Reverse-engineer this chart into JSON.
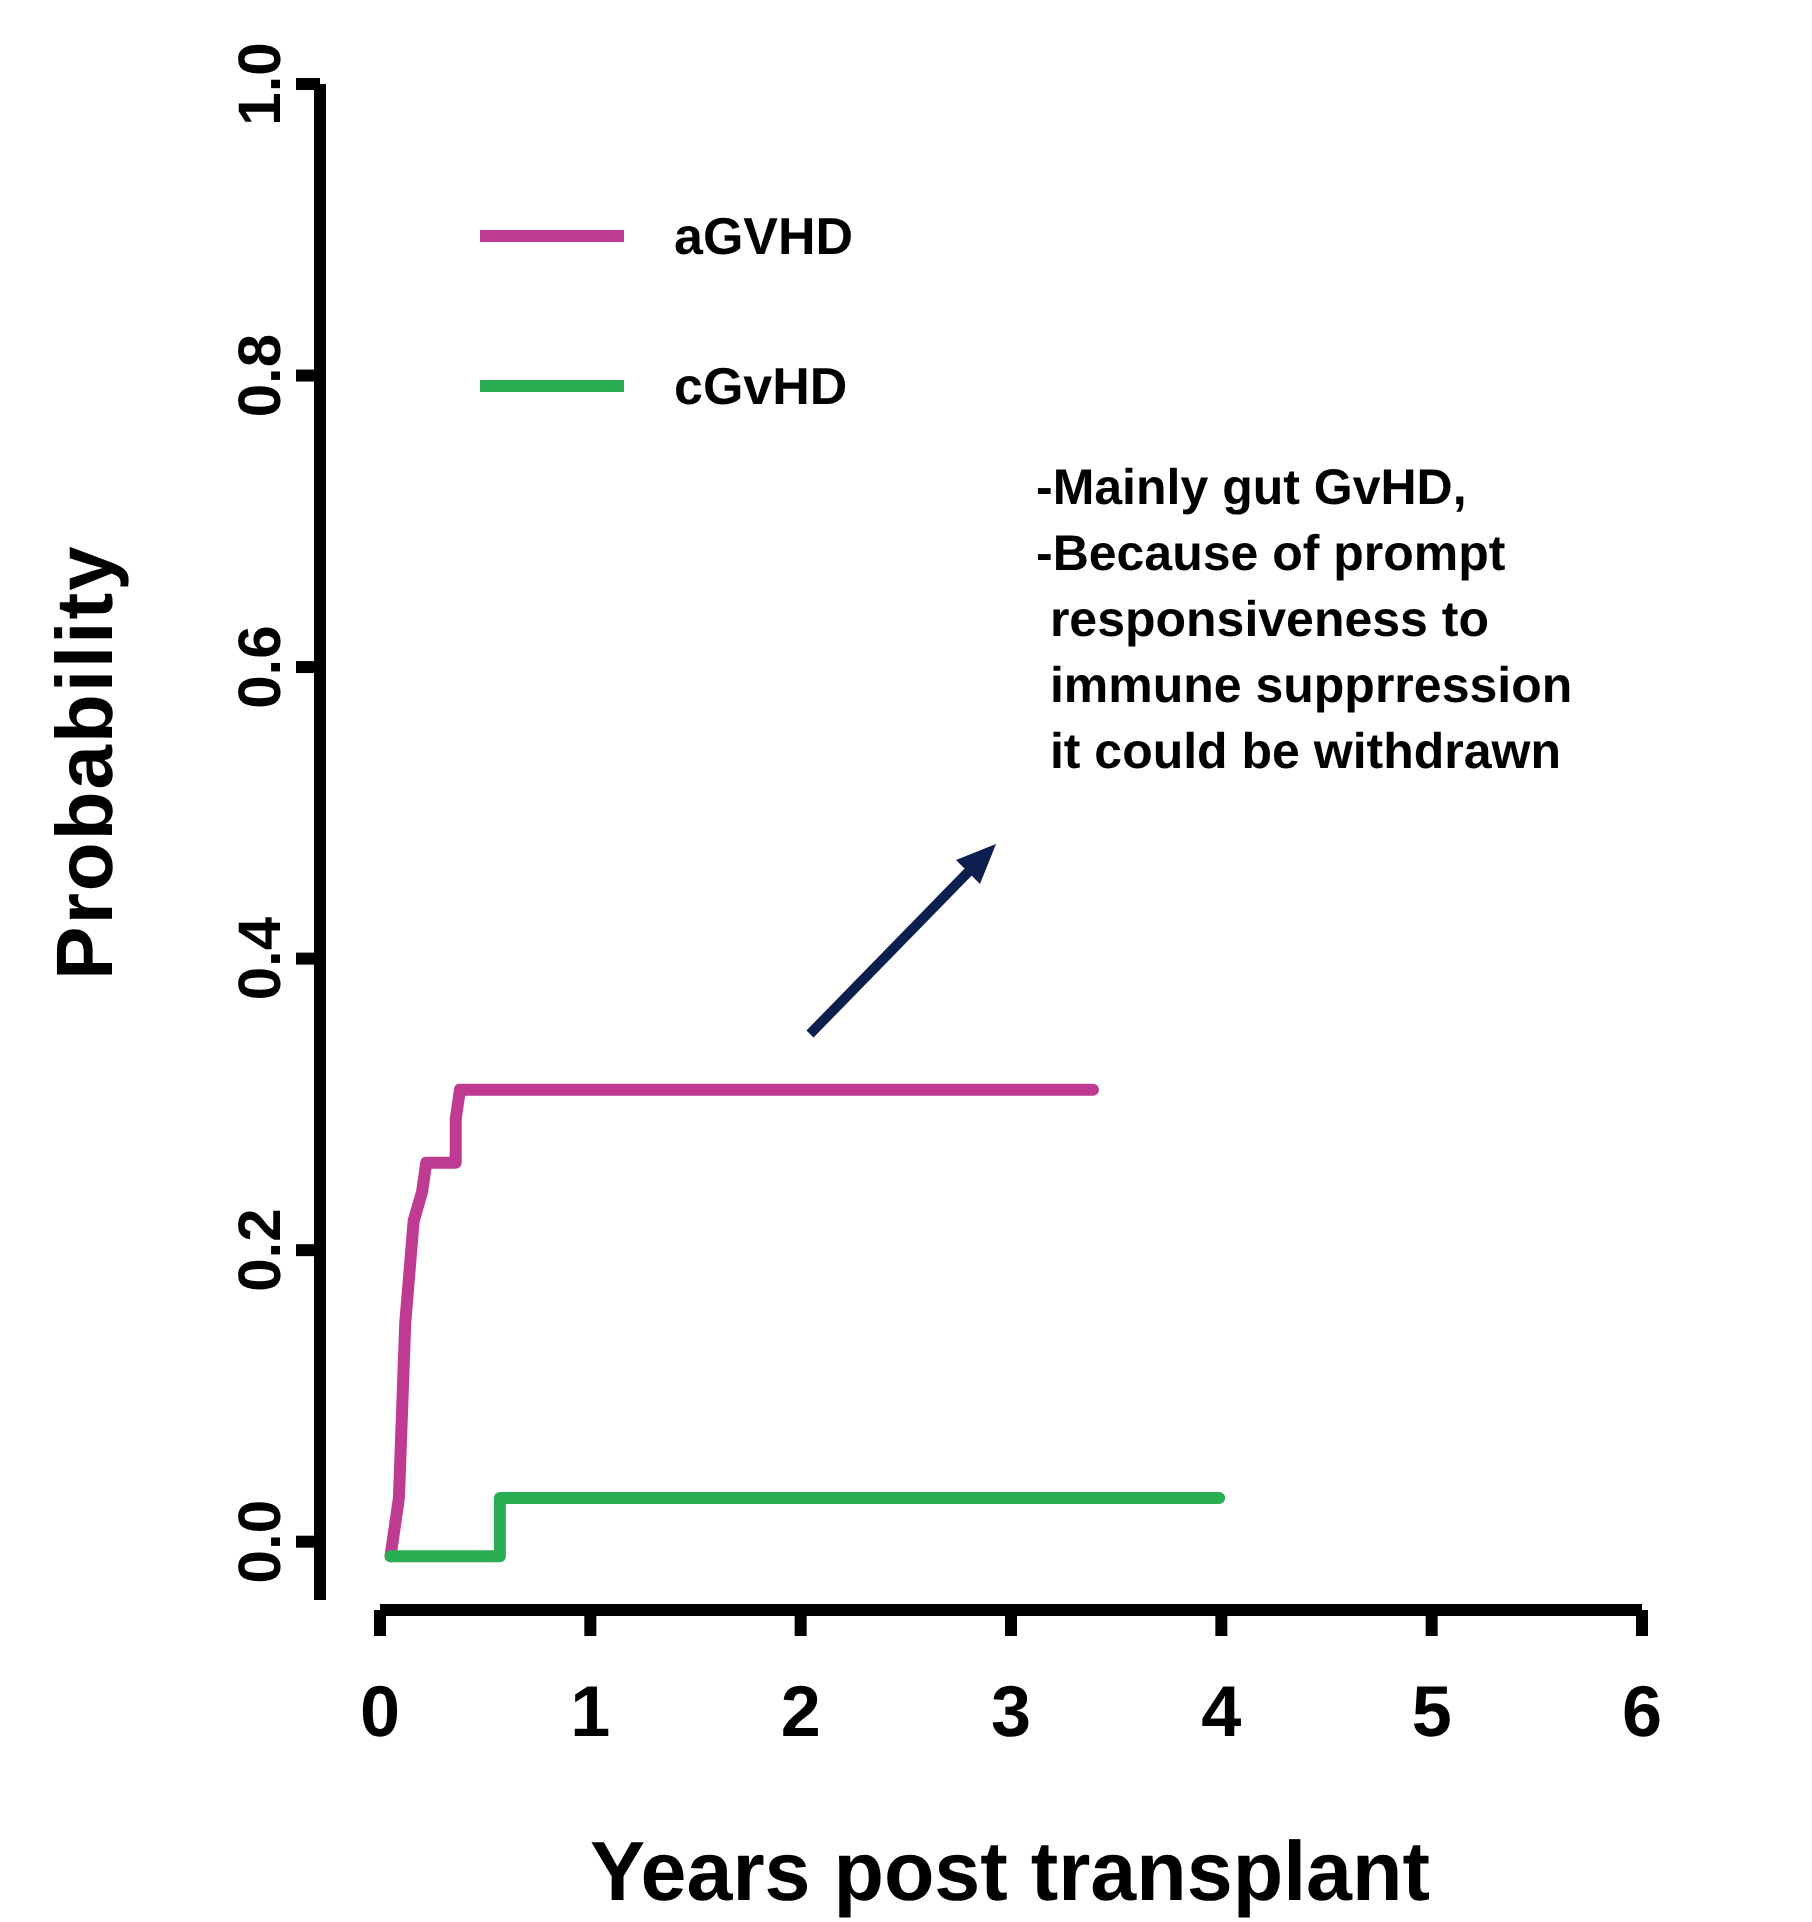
{
  "chart_data": {
    "type": "line",
    "xlabel": "Years post transplant",
    "ylabel": "Probability",
    "xlim": [
      0,
      6
    ],
    "xticks": [
      0,
      1,
      2,
      3,
      4,
      5,
      6
    ],
    "ylim": [
      -0.04,
      1
    ],
    "yticks": [
      {
        "value": 0,
        "label": "0.0"
      },
      {
        "value": 0.2,
        "label": "0.2"
      },
      {
        "value": 0.4,
        "label": "0.4"
      },
      {
        "value": 0.6,
        "label": "0.6"
      },
      {
        "value": 0.8,
        "label": "0.8"
      },
      {
        "value": 1,
        "label": "1.0"
      }
    ],
    "grid": false,
    "legend": "top left",
    "marker": "none",
    "line_style": "solid",
    "series": [
      {
        "name": "aGVHD",
        "color": "#bf3a93",
        "x": [
          0.05,
          0.09,
          0.12,
          0.16,
          0.2,
          0.22,
          0.36,
          0.36,
          0.38,
          3.39
        ],
        "values": [
          -0.01,
          0.03,
          0.15,
          0.22,
          0.24,
          0.26,
          0.26,
          0.29,
          0.31,
          0.31
        ]
      },
      {
        "name": "cGvHD",
        "color": "#2aae53",
        "x": [
          0.05,
          0.57,
          0.57,
          3.99
        ],
        "values": [
          -0.01,
          -0.01,
          0.03,
          0.03
        ]
      }
    ],
    "annotations": [
      "-Mainly gut GvHD,\n-Because of prompt\n responsiveness to\n immune supprression\n it could be withdrawn"
    ]
  }
}
